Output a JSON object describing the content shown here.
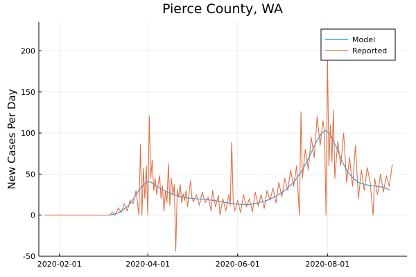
{
  "chart_data": {
    "type": "line",
    "title": "Pierce County, WA",
    "xlabel": "",
    "ylabel": "New Cases Per Day",
    "x_axis_type": "date",
    "xlim": [
      "2020-01-18",
      "2020-09-24"
    ],
    "ylim": [
      -50,
      235
    ],
    "x_ticks": [
      {
        "value": "2020-02-01",
        "label": "2020-02-01"
      },
      {
        "value": "2020-04-01",
        "label": "2020-04-01"
      },
      {
        "value": "2020-06-01",
        "label": "2020-06-01"
      },
      {
        "value": "2020-08-01",
        "label": "2020-08-01"
      }
    ],
    "y_ticks": [
      -50,
      0,
      50,
      100,
      150,
      200
    ],
    "grid": true,
    "legend_position": "top-right",
    "series": [
      {
        "name": "Model",
        "color": "#009AFA",
        "points": [
          [
            "2020-03-06",
            0
          ],
          [
            "2020-03-11",
            2
          ],
          [
            "2020-03-15",
            6
          ],
          [
            "2020-03-19",
            12
          ],
          [
            "2020-03-23",
            22
          ],
          [
            "2020-03-27",
            33
          ],
          [
            "2020-03-31",
            40
          ],
          [
            "2020-04-02",
            41
          ],
          [
            "2020-04-05",
            38
          ],
          [
            "2020-04-09",
            33
          ],
          [
            "2020-04-13",
            29
          ],
          [
            "2020-04-17",
            26
          ],
          [
            "2020-04-22",
            23
          ],
          [
            "2020-04-28",
            21
          ],
          [
            "2020-05-04",
            20
          ],
          [
            "2020-05-10",
            19
          ],
          [
            "2020-05-16",
            18
          ],
          [
            "2020-05-22",
            16
          ],
          [
            "2020-05-28",
            14
          ],
          [
            "2020-06-03",
            13
          ],
          [
            "2020-06-09",
            13
          ],
          [
            "2020-06-15",
            15
          ],
          [
            "2020-06-21",
            18
          ],
          [
            "2020-06-27",
            23
          ],
          [
            "2020-07-03",
            30
          ],
          [
            "2020-07-09",
            40
          ],
          [
            "2020-07-15",
            55
          ],
          [
            "2020-07-20",
            72
          ],
          [
            "2020-07-24",
            88
          ],
          [
            "2020-07-28",
            100
          ],
          [
            "2020-07-31",
            103
          ],
          [
            "2020-08-03",
            98
          ],
          [
            "2020-08-07",
            83
          ],
          [
            "2020-08-11",
            65
          ],
          [
            "2020-08-15",
            52
          ],
          [
            "2020-08-19",
            44
          ],
          [
            "2020-08-23",
            39
          ],
          [
            "2020-08-27",
            37
          ],
          [
            "2020-08-31",
            36
          ],
          [
            "2020-09-04",
            35
          ],
          [
            "2020-09-08",
            34
          ],
          [
            "2020-09-12",
            31
          ]
        ]
      },
      {
        "name": "Reported",
        "color": "#E26F46",
        "points": [
          [
            "2020-01-22",
            0
          ],
          [
            "2020-03-06",
            0
          ],
          [
            "2020-03-08",
            4
          ],
          [
            "2020-03-10",
            0
          ],
          [
            "2020-03-12",
            9
          ],
          [
            "2020-03-14",
            3
          ],
          [
            "2020-03-16",
            14
          ],
          [
            "2020-03-18",
            5
          ],
          [
            "2020-03-20",
            18
          ],
          [
            "2020-03-22",
            14
          ],
          [
            "2020-03-24",
            30
          ],
          [
            "2020-03-26",
            0
          ],
          [
            "2020-03-27",
            86
          ],
          [
            "2020-03-28",
            0
          ],
          [
            "2020-03-29",
            57
          ],
          [
            "2020-03-30",
            20
          ],
          [
            "2020-03-31",
            60
          ],
          [
            "2020-04-01",
            0
          ],
          [
            "2020-04-02",
            121
          ],
          [
            "2020-04-03",
            45
          ],
          [
            "2020-04-04",
            67
          ],
          [
            "2020-04-05",
            30
          ],
          [
            "2020-04-06",
            45
          ],
          [
            "2020-04-07",
            25
          ],
          [
            "2020-04-08",
            37
          ],
          [
            "2020-04-09",
            48
          ],
          [
            "2020-04-10",
            20
          ],
          [
            "2020-04-11",
            36
          ],
          [
            "2020-04-12",
            5
          ],
          [
            "2020-04-13",
            29
          ],
          [
            "2020-04-14",
            15
          ],
          [
            "2020-04-15",
            63
          ],
          [
            "2020-04-16",
            12
          ],
          [
            "2020-04-17",
            45
          ],
          [
            "2020-04-18",
            24
          ],
          [
            "2020-04-19",
            37
          ],
          [
            "2020-04-20",
            -44
          ],
          [
            "2020-04-21",
            31
          ],
          [
            "2020-04-22",
            22
          ],
          [
            "2020-04-23",
            38
          ],
          [
            "2020-04-24",
            15
          ],
          [
            "2020-04-25",
            26
          ],
          [
            "2020-04-26",
            18
          ],
          [
            "2020-04-27",
            30
          ],
          [
            "2020-04-28",
            10
          ],
          [
            "2020-04-30",
            42
          ],
          [
            "2020-05-01",
            21
          ],
          [
            "2020-05-02",
            16
          ],
          [
            "2020-05-04",
            25
          ],
          [
            "2020-05-06",
            12
          ],
          [
            "2020-05-08",
            28
          ],
          [
            "2020-05-10",
            15
          ],
          [
            "2020-05-12",
            22
          ],
          [
            "2020-05-14",
            5
          ],
          [
            "2020-05-15",
            30
          ],
          [
            "2020-05-17",
            10
          ],
          [
            "2020-05-19",
            24
          ],
          [
            "2020-05-20",
            0
          ],
          [
            "2020-05-22",
            20
          ],
          [
            "2020-05-24",
            5
          ],
          [
            "2020-05-26",
            25
          ],
          [
            "2020-05-27",
            12
          ],
          [
            "2020-05-28",
            89
          ],
          [
            "2020-05-29",
            15
          ],
          [
            "2020-05-30",
            5
          ],
          [
            "2020-06-01",
            18
          ],
          [
            "2020-06-03",
            3
          ],
          [
            "2020-06-05",
            25
          ],
          [
            "2020-06-07",
            10
          ],
          [
            "2020-06-09",
            20
          ],
          [
            "2020-06-11",
            4
          ],
          [
            "2020-06-13",
            28
          ],
          [
            "2020-06-15",
            11
          ],
          [
            "2020-06-17",
            25
          ],
          [
            "2020-06-19",
            8
          ],
          [
            "2020-06-21",
            30
          ],
          [
            "2020-06-23",
            18
          ],
          [
            "2020-06-25",
            33
          ],
          [
            "2020-06-27",
            15
          ],
          [
            "2020-06-29",
            40
          ],
          [
            "2020-07-01",
            22
          ],
          [
            "2020-07-03",
            45
          ],
          [
            "2020-07-05",
            30
          ],
          [
            "2020-07-07",
            55
          ],
          [
            "2020-07-09",
            35
          ],
          [
            "2020-07-11",
            60
          ],
          [
            "2020-07-13",
            0
          ],
          [
            "2020-07-14",
            126
          ],
          [
            "2020-07-15",
            45
          ],
          [
            "2020-07-17",
            80
          ],
          [
            "2020-07-19",
            55
          ],
          [
            "2020-07-21",
            95
          ],
          [
            "2020-07-23",
            70
          ],
          [
            "2020-07-25",
            120
          ],
          [
            "2020-07-27",
            85
          ],
          [
            "2020-07-29",
            115
          ],
          [
            "2020-07-30",
            100
          ],
          [
            "2020-07-31",
            0
          ],
          [
            "2020-08-01",
            192
          ],
          [
            "2020-08-02",
            60
          ],
          [
            "2020-08-03",
            110
          ],
          [
            "2020-08-04",
            65
          ],
          [
            "2020-08-05",
            128
          ],
          [
            "2020-08-06",
            45
          ],
          [
            "2020-08-08",
            90
          ],
          [
            "2020-08-10",
            60
          ],
          [
            "2020-08-12",
            100
          ],
          [
            "2020-08-14",
            40
          ],
          [
            "2020-08-16",
            70
          ],
          [
            "2020-08-18",
            35
          ],
          [
            "2020-08-20",
            85
          ],
          [
            "2020-08-22",
            20
          ],
          [
            "2020-08-24",
            55
          ],
          [
            "2020-08-26",
            30
          ],
          [
            "2020-08-28",
            58
          ],
          [
            "2020-08-30",
            40
          ],
          [
            "2020-09-01",
            0
          ],
          [
            "2020-09-02",
            45
          ],
          [
            "2020-09-04",
            25
          ],
          [
            "2020-09-06",
            50
          ],
          [
            "2020-09-08",
            28
          ],
          [
            "2020-09-10",
            48
          ],
          [
            "2020-09-12",
            35
          ],
          [
            "2020-09-14",
            62
          ]
        ]
      }
    ]
  }
}
